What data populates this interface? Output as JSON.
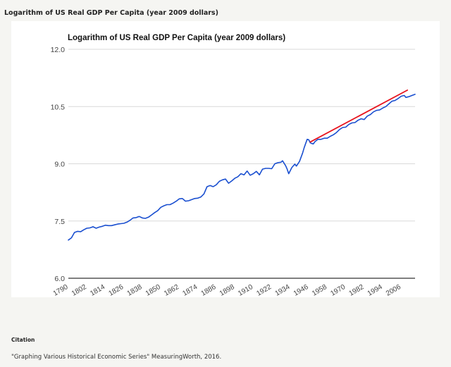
{
  "page": {
    "heading": "Logarithm of US Real GDP Per Capita (year 2009 dollars)",
    "citation_label": "Citation",
    "citation_text": "\"Graphing Various Historical Economic Series\" MeasuringWorth, 2016."
  },
  "colors": {
    "gdp_line": "#1a4fd0",
    "trend_line": "#e8141e",
    "grid": "#d9d9d9",
    "baseline": "#333333",
    "tick_text": "#444444"
  },
  "chart_data": {
    "type": "line",
    "title": "Logarithm of US Real GDP Per Capita (year 2009 dollars)",
    "xlabel": "",
    "ylabel": "",
    "xlim": [
      1790,
      2015
    ],
    "ylim": [
      6.0,
      12.0
    ],
    "yticks": [
      "6.0",
      "7.5",
      "9.0",
      "10.5",
      "12.0"
    ],
    "xticks": [
      "1790",
      "1802",
      "1814",
      "1826",
      "1838",
      "1850",
      "1862",
      "1874",
      "1886",
      "1898",
      "1910",
      "1922",
      "1934",
      "1946",
      "1958",
      "1970",
      "1982",
      "1994",
      "2006"
    ],
    "grid": true,
    "legend": "none",
    "series": [
      {
        "color": "#1a4fd0",
        "x": [
          1790,
          1792,
          1794,
          1796,
          1798,
          1800,
          1802,
          1804,
          1806,
          1808,
          1810,
          1812,
          1814,
          1816,
          1818,
          1820,
          1822,
          1824,
          1826,
          1828,
          1830,
          1832,
          1834,
          1836,
          1838,
          1840,
          1842,
          1844,
          1846,
          1848,
          1850,
          1852,
          1854,
          1856,
          1858,
          1860,
          1862,
          1864,
          1866,
          1868,
          1870,
          1872,
          1874,
          1876,
          1878,
          1880,
          1882,
          1884,
          1886,
          1888,
          1890,
          1892,
          1894,
          1896,
          1898,
          1900,
          1902,
          1904,
          1906,
          1908,
          1910,
          1912,
          1914,
          1916,
          1918,
          1920,
          1922,
          1924,
          1926,
          1928,
          1929,
          1931,
          1932,
          1933,
          1935,
          1937,
          1938,
          1940,
          1942,
          1943,
          1944,
          1945,
          1946,
          1947,
          1948,
          1949,
          1950,
          1952,
          1954,
          1956,
          1958,
          1960,
          1962,
          1964,
          1966,
          1968,
          1970,
          1972,
          1974,
          1976,
          1978,
          1980,
          1982,
          1984,
          1986,
          1988,
          1990,
          1992,
          1994,
          1996,
          1998,
          2000,
          2002,
          2004,
          2006,
          2008,
          2009,
          2011,
          2013,
          2015
        ],
        "values": [
          7.0,
          7.06,
          7.2,
          7.23,
          7.22,
          7.27,
          7.31,
          7.32,
          7.35,
          7.31,
          7.34,
          7.36,
          7.39,
          7.38,
          7.38,
          7.4,
          7.42,
          7.43,
          7.44,
          7.47,
          7.52,
          7.58,
          7.59,
          7.62,
          7.58,
          7.57,
          7.6,
          7.66,
          7.72,
          7.77,
          7.86,
          7.9,
          7.93,
          7.93,
          7.97,
          8.02,
          8.08,
          8.09,
          8.02,
          8.03,
          8.06,
          8.09,
          8.1,
          8.13,
          8.21,
          8.4,
          8.43,
          8.4,
          8.45,
          8.54,
          8.58,
          8.6,
          8.49,
          8.55,
          8.62,
          8.66,
          8.74,
          8.71,
          8.81,
          8.7,
          8.74,
          8.8,
          8.71,
          8.86,
          8.88,
          8.88,
          8.87,
          9.0,
          9.03,
          9.04,
          9.08,
          8.95,
          8.86,
          8.74,
          8.9,
          8.99,
          8.94,
          9.06,
          9.28,
          9.42,
          9.53,
          9.64,
          9.63,
          9.55,
          9.53,
          9.52,
          9.58,
          9.64,
          9.64,
          9.67,
          9.67,
          9.72,
          9.76,
          9.82,
          9.9,
          9.95,
          9.96,
          10.03,
          10.07,
          10.08,
          10.14,
          10.18,
          10.16,
          10.25,
          10.29,
          10.36,
          10.4,
          10.41,
          10.46,
          10.5,
          10.57,
          10.64,
          10.66,
          10.71,
          10.77,
          10.79,
          10.74,
          10.76,
          10.79,
          10.82
        ]
      },
      {
        "color": "#e8141e",
        "x": [
          1947,
          2010
        ],
        "values": [
          9.57,
          10.93
        ]
      }
    ]
  }
}
